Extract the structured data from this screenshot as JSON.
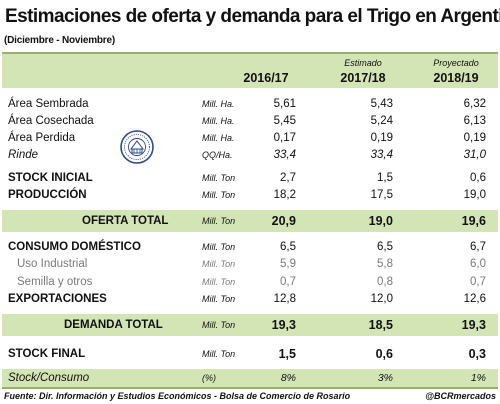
{
  "title": "Estimaciones de oferta y demanda para el Trigo en Argentina",
  "subtitle": "(Diciembre - Noviembre)",
  "header": {
    "col1": {
      "sub": "",
      "year": "2016/17"
    },
    "col2": {
      "sub": "Estimado",
      "year": "2017/18"
    },
    "col3": {
      "sub": "Proyectado",
      "year": "2018/19"
    }
  },
  "rows": [
    {
      "label": "Área Sembrada",
      "unit": "Mill. Ha.",
      "v1": "5,61",
      "v2": "5,43",
      "v3": "6,32"
    },
    {
      "label": "Área Cosechada",
      "unit": "Mill. Ha.",
      "v1": "5,45",
      "v2": "5,24",
      "v3": "6,13"
    },
    {
      "label": "Área Perdida",
      "unit": "Mill. Ha.",
      "v1": "0,17",
      "v2": "0,19",
      "v3": "0,19"
    },
    {
      "label": "Rinde",
      "unit": "QQ/Ha.",
      "v1": "33,4",
      "v2": "33,4",
      "v3": "31,0"
    },
    {
      "label": "STOCK INICIAL",
      "unit": "Mill. Ton",
      "v1": "2,7",
      "v2": "1,5",
      "v3": "0,6"
    },
    {
      "label": "PRODUCCIÓN",
      "unit": "Mill. Ton",
      "v1": "18,2",
      "v2": "17,5",
      "v3": "19,0"
    },
    {
      "label": "OFERTA TOTAL",
      "unit": "Mill. Ton",
      "v1": "20,9",
      "v2": "19,0",
      "v3": "19,6"
    },
    {
      "label": "CONSUMO DOMÉSTICO",
      "unit": "Mill. Ton",
      "v1": "6,5",
      "v2": "6,5",
      "v3": "6,7"
    },
    {
      "label": "Uso Industrial",
      "unit": "Mill. Ton",
      "v1": "5,9",
      "v2": "5,8",
      "v3": "6,0"
    },
    {
      "label": "Semilla y otros",
      "unit": "Mill. Ton",
      "v1": "0,7",
      "v2": "0,8",
      "v3": "0,7"
    },
    {
      "label": "EXPORTACIONES",
      "unit": "Mill. Ton",
      "v1": "12,8",
      "v2": "12,0",
      "v3": "12,6"
    },
    {
      "label": "DEMANDA TOTAL",
      "unit": "Mill. Ton",
      "v1": "19,3",
      "v2": "18,5",
      "v3": "19,3"
    },
    {
      "label": "STOCK FINAL",
      "unit": "Mill. Ton",
      "v1": "1,5",
      "v2": "0,6",
      "v3": "0,3"
    },
    {
      "label": "Stock/Consumo",
      "unit": "(%)",
      "v1": "8%",
      "v2": "3%",
      "v3": "1%"
    }
  ],
  "footer": {
    "source": "Fuente: Dir. Información y Estudios Económicos - Bolsa de Comercio de Rosario",
    "handle": "@BCRmercados"
  },
  "colors": {
    "accent_green": "#d4e5b5",
    "rule": "#9ab06a"
  },
  "seal_icon": "bcr-seal-icon"
}
